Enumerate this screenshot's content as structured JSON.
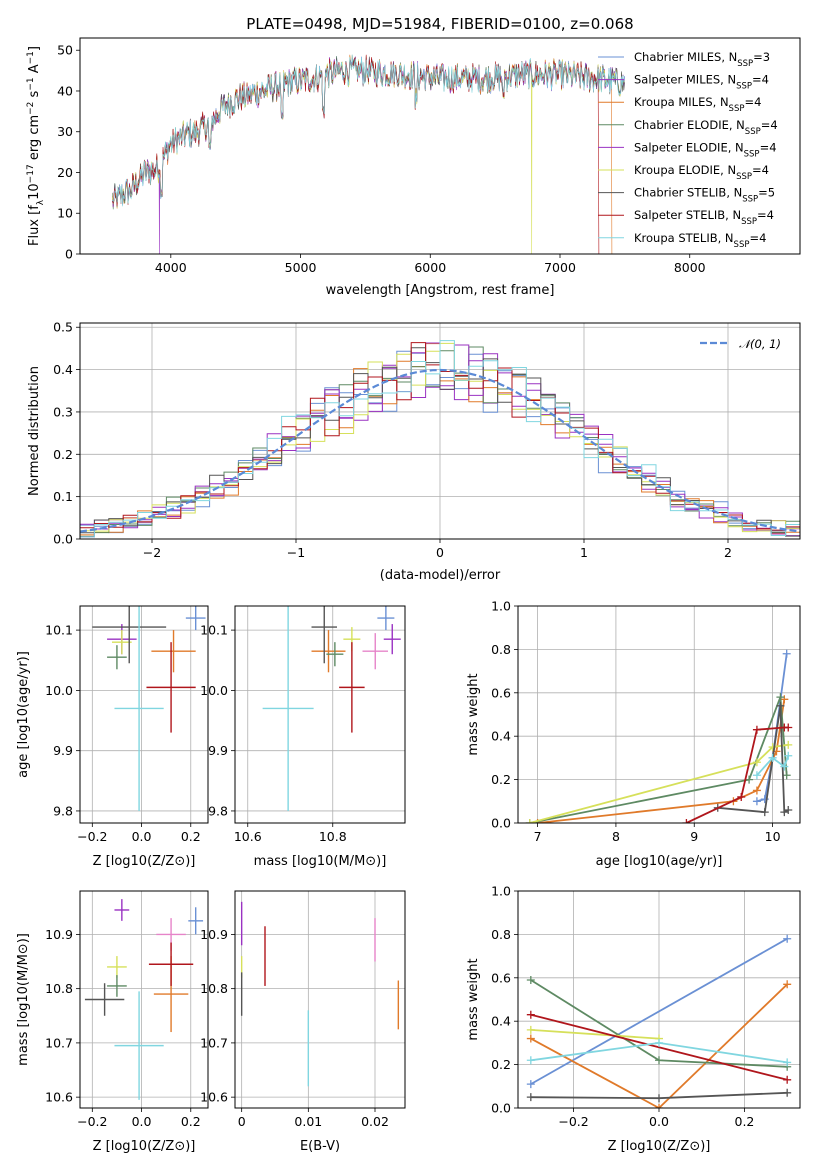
{
  "figure": {
    "title": "PLATE=0498, MJD=51984, FIBERID=0100, z=0.068"
  },
  "colors": {
    "Chabrier MILES": "#6a90d4",
    "Salpeter MILES": "#9a32c2",
    "Kroupa MILES": "#e07a2a",
    "Chabrier ELODIE": "#5e8a63",
    "Salpeter ELODIE": "#9a32c2",
    "Kroupa ELODIE": "#d6e05a",
    "Chabrier STELIB": "#555555",
    "Salpeter STELIB": "#b0161c",
    "Kroupa STELIB": "#80d6e0",
    "gaussian": "#5b8ad6",
    "pink": "#e684c9"
  },
  "chart_data": [
    {
      "id": "spectrum",
      "type": "line",
      "xlabel": "wavelength [Angstrom, rest frame]",
      "ylabel": "Flux [f_λ10^-17 erg cm^-2 s^-1 A^-1]",
      "xlim": [
        3300,
        8850
      ],
      "ylim": [
        0,
        53
      ],
      "xticks": [
        4000,
        5000,
        6000,
        7000,
        8000
      ],
      "yticks": [
        0,
        10,
        20,
        30,
        40,
        50
      ],
      "legend_position": "upper right",
      "legend": [
        "Chabrier MILES, N_SSP=3",
        "Salpeter MILES, N_SSP=4",
        "Kroupa MILES, N_SSP=4",
        "Chabrier ELODIE, N_SSP=4",
        "Salpeter ELODIE, N_SSP=4",
        "Kroupa ELODIE, N_SSP=4",
        "Chabrier STELIB, N_SSP=5",
        "Salpeter STELIB, N_SSP=4",
        "Kroupa STELIB, N_SSP=4"
      ],
      "continuum": {
        "x": [
          3550,
          3700,
          3800,
          3900,
          4000,
          4100,
          4200,
          4300,
          4400,
          4500,
          4700,
          4900,
          5100,
          5300,
          5500,
          5800,
          6100,
          6400,
          6700,
          7000,
          7300,
          7500
        ],
        "y": [
          13,
          16,
          20,
          21,
          27,
          29,
          30,
          32,
          36,
          38,
          40,
          42,
          43,
          45,
          45,
          44,
          43,
          43,
          44,
          44,
          43,
          42
        ]
      },
      "dips": [
        {
          "x": 3930,
          "y": 14
        },
        {
          "x": 4300,
          "y": 24
        },
        {
          "x": 4860,
          "y": 31
        },
        {
          "x": 5175,
          "y": 33
        },
        {
          "x": 5890,
          "y": 36
        },
        {
          "x": 6560,
          "y": 38
        }
      ]
    },
    {
      "id": "residuals",
      "type": "step",
      "xlabel": "(data-model)/error",
      "ylabel": "Normed distribution",
      "xlim": [
        -2.5,
        2.5
      ],
      "ylim": [
        0,
        0.51
      ],
      "xticks": [
        -2,
        -1,
        0,
        1,
        2
      ],
      "yticks": [
        0.0,
        0.1,
        0.2,
        0.3,
        0.4,
        0.5
      ],
      "grid": true,
      "legend": [
        "𝒩(0, 1)"
      ],
      "legend_position": "upper right",
      "bins": 50
    },
    {
      "id": "age_vs_Z",
      "type": "errorbar",
      "xlabel": "Z [log10(Z/Z⊙)]",
      "ylabel": "age [log10(age/yr)]",
      "xlim": [
        -0.25,
        0.27
      ],
      "ylim": [
        9.78,
        10.14
      ],
      "xticks": [
        -0.2,
        0.0,
        0.2
      ],
      "yticks": [
        9.8,
        9.9,
        10.0,
        10.1
      ],
      "grid": true,
      "points": [
        {
          "x": 0.22,
          "y": 10.12,
          "xerr": 0.04,
          "yerr": 0.02,
          "c": "Chabrier MILES"
        },
        {
          "x": 0.13,
          "y": 10.065,
          "xerr": 0.09,
          "yerr": 0.035,
          "c": "Kroupa MILES"
        },
        {
          "x": -0.08,
          "y": 10.085,
          "xerr": 0.06,
          "yerr": 0.025,
          "c": "Salpeter ELODIE"
        },
        {
          "x": -0.08,
          "y": 10.08,
          "xerr": 0.04,
          "yerr": 0.02,
          "c": "Kroupa ELODIE"
        },
        {
          "x": -0.1,
          "y": 10.055,
          "xerr": 0.04,
          "yerr": 0.02,
          "c": "Chabrier ELODIE"
        },
        {
          "x": -0.05,
          "y": 10.105,
          "xerr": 0.15,
          "yerr": 0.06,
          "c": "Chabrier STELIB"
        },
        {
          "x": 0.12,
          "y": 10.005,
          "xerr": 0.1,
          "yerr": 0.075,
          "c": "Salpeter STELIB"
        },
        {
          "x": -0.01,
          "y": 9.97,
          "xerr": 0.1,
          "yerr": 0.17,
          "c": "Kroupa STELIB"
        }
      ]
    },
    {
      "id": "age_vs_mass",
      "type": "errorbar",
      "xlabel": "mass [log10(M/M⊙)]",
      "ylabel": "",
      "xlim": [
        10.57,
        10.97
      ],
      "ylim": [
        9.78,
        10.14
      ],
      "xticks": [
        10.6,
        10.8
      ],
      "yticks": [
        9.8,
        9.9,
        10.0,
        10.1
      ],
      "grid": true,
      "points": [
        {
          "x": 10.925,
          "y": 10.12,
          "xerr": 0.02,
          "yerr": 0.02,
          "c": "Chabrier MILES"
        },
        {
          "x": 10.94,
          "y": 10.085,
          "xerr": 0.02,
          "yerr": 0.025,
          "c": "Salpeter ELODIE"
        },
        {
          "x": 10.79,
          "y": 10.065,
          "xerr": 0.04,
          "yerr": 0.035,
          "c": "Kroupa MILES"
        },
        {
          "x": 10.845,
          "y": 10.085,
          "xerr": 0.02,
          "yerr": 0.02,
          "c": "Kroupa ELODIE"
        },
        {
          "x": 10.805,
          "y": 10.06,
          "xerr": 0.02,
          "yerr": 0.02,
          "c": "Chabrier ELODIE"
        },
        {
          "x": 10.9,
          "y": 10.065,
          "xerr": 0.03,
          "yerr": 0.03,
          "c": "pink"
        },
        {
          "x": 10.78,
          "y": 10.105,
          "xerr": 0.03,
          "yerr": 0.06,
          "c": "Chabrier STELIB"
        },
        {
          "x": 10.845,
          "y": 10.005,
          "xerr": 0.03,
          "yerr": 0.075,
          "c": "Salpeter STELIB"
        },
        {
          "x": 10.695,
          "y": 9.97,
          "xerr": 0.06,
          "yerr": 0.17,
          "c": "Kroupa STELIB"
        }
      ]
    },
    {
      "id": "mass_weight_vs_age",
      "type": "line",
      "xlabel": "age [log10(age/yr)]",
      "ylabel": "mass weight",
      "xlim": [
        6.75,
        10.35
      ],
      "ylim": [
        0,
        1
      ],
      "xticks": [
        7,
        8,
        9,
        10
      ],
      "yticks": [
        0.0,
        0.2,
        0.4,
        0.6,
        0.8,
        1.0
      ],
      "grid": true,
      "series": [
        {
          "c": "Chabrier MILES",
          "x": [
            9.8,
            9.9,
            10.0,
            10.18
          ],
          "y": [
            0.1,
            0.11,
            0.3,
            0.78
          ]
        },
        {
          "c": "Kroupa MILES",
          "x": [
            7.0,
            9.5,
            9.8,
            10.05,
            10.15
          ],
          "y": [
            0.0,
            0.1,
            0.15,
            0.33,
            0.57
          ]
        },
        {
          "c": "Chabrier ELODIE",
          "x": [
            6.9,
            9.7,
            10.1,
            10.18
          ],
          "y": [
            0.0,
            0.2,
            0.58,
            0.22
          ]
        },
        {
          "c": "Kroupa ELODIE",
          "x": [
            6.9,
            9.8,
            10.0,
            10.2
          ],
          "y": [
            0.0,
            0.28,
            0.35,
            0.36
          ]
        },
        {
          "c": "Chabrier STELIB",
          "x": [
            9.3,
            9.9,
            10.1,
            10.15,
            10.2
          ],
          "y": [
            0.07,
            0.05,
            0.54,
            0.05,
            0.06
          ]
        },
        {
          "c": "Salpeter STELIB",
          "x": [
            8.9,
            9.6,
            9.8,
            10.15,
            10.2
          ],
          "y": [
            0.0,
            0.12,
            0.43,
            0.44,
            0.44
          ]
        },
        {
          "c": "Kroupa STELIB",
          "x": [
            9.8,
            10.0,
            10.15,
            10.2
          ],
          "y": [
            0.22,
            0.3,
            0.26,
            0.31
          ]
        }
      ]
    },
    {
      "id": "mass_vs_Z",
      "type": "errorbar",
      "xlabel": "Z [log10(Z/Z⊙)]",
      "ylabel": "mass [log10(M/M⊙)]",
      "xlim": [
        -0.25,
        0.27
      ],
      "ylim": [
        10.58,
        10.98
      ],
      "xticks": [
        -0.2,
        0.0,
        0.2
      ],
      "yticks": [
        10.6,
        10.7,
        10.8,
        10.9
      ],
      "grid": true,
      "points": [
        {
          "x": 0.22,
          "y": 10.925,
          "xerr": 0.03,
          "yerr": 0.025,
          "c": "Chabrier MILES"
        },
        {
          "x": -0.08,
          "y": 10.945,
          "xerr": 0.03,
          "yerr": 0.02,
          "c": "Salpeter ELODIE"
        },
        {
          "x": 0.12,
          "y": 10.9,
          "xerr": 0.06,
          "yerr": 0.03,
          "c": "pink"
        },
        {
          "x": 0.12,
          "y": 10.79,
          "xerr": 0.07,
          "yerr": 0.07,
          "c": "Kroupa MILES"
        },
        {
          "x": -0.1,
          "y": 10.84,
          "xerr": 0.04,
          "yerr": 0.02,
          "c": "Kroupa ELODIE"
        },
        {
          "x": -0.1,
          "y": 10.805,
          "xerr": 0.04,
          "yerr": 0.02,
          "c": "Chabrier ELODIE"
        },
        {
          "x": -0.15,
          "y": 10.78,
          "xerr": 0.08,
          "yerr": 0.03,
          "c": "Chabrier STELIB"
        },
        {
          "x": 0.12,
          "y": 10.845,
          "xerr": 0.09,
          "yerr": 0.04,
          "c": "Salpeter STELIB"
        },
        {
          "x": -0.01,
          "y": 10.695,
          "xerr": 0.1,
          "yerr": 0.1,
          "c": "Kroupa STELIB"
        }
      ]
    },
    {
      "id": "mass_vs_ebv",
      "type": "errorbar",
      "xlabel": "E(B-V)",
      "ylabel": "",
      "xlim": [
        -0.001,
        0.0245
      ],
      "ylim": [
        10.58,
        10.98
      ],
      "xticks": [
        0.0,
        0.01,
        0.02
      ],
      "yticks": [
        10.6,
        10.7,
        10.8,
        10.9
      ],
      "grid": true,
      "points": [
        {
          "x": 0.0,
          "y": 10.92,
          "xerr": 0,
          "yerr": 0.04,
          "c": "Salpeter ELODIE"
        },
        {
          "x": 0.0,
          "y": 10.84,
          "xerr": 0,
          "yerr": 0.02,
          "c": "Kroupa ELODIE"
        },
        {
          "x": 0.0,
          "y": 10.79,
          "xerr": 0,
          "yerr": 0.04,
          "c": "Chabrier STELIB"
        },
        {
          "x": 0.0035,
          "y": 10.86,
          "xerr": 0,
          "yerr": 0.055,
          "c": "Salpeter STELIB"
        },
        {
          "x": 0.01,
          "y": 10.69,
          "xerr": 0,
          "yerr": 0.07,
          "c": "Kroupa STELIB"
        },
        {
          "x": 0.02,
          "y": 10.89,
          "xerr": 0,
          "yerr": 0.04,
          "c": "pink"
        },
        {
          "x": 0.0235,
          "y": 10.77,
          "xerr": 0,
          "yerr": 0.045,
          "c": "Kroupa MILES"
        }
      ]
    },
    {
      "id": "mass_weight_vs_Z",
      "type": "line",
      "xlabel": "Z [log10(Z/Z⊙)]",
      "ylabel": "mass weight",
      "xlim": [
        -0.33,
        0.33
      ],
      "ylim": [
        0,
        1
      ],
      "xticks": [
        -0.2,
        0.0,
        0.2
      ],
      "yticks": [
        0.0,
        0.2,
        0.4,
        0.6,
        0.8,
        1.0
      ],
      "grid": true,
      "series": [
        {
          "c": "Chabrier MILES",
          "x": [
            -0.3,
            0.3
          ],
          "y": [
            0.11,
            0.78
          ]
        },
        {
          "c": "Kroupa MILES",
          "x": [
            -0.3,
            0.0,
            0.3
          ],
          "y": [
            0.32,
            0.0,
            0.57
          ]
        },
        {
          "c": "Chabrier ELODIE",
          "x": [
            -0.3,
            0.0,
            0.3
          ],
          "y": [
            0.59,
            0.22,
            0.19
          ]
        },
        {
          "c": "Kroupa ELODIE",
          "x": [
            -0.3,
            0.0
          ],
          "y": [
            0.36,
            0.32
          ]
        },
        {
          "c": "Chabrier STELIB",
          "x": [
            -0.3,
            0.0,
            0.3
          ],
          "y": [
            0.05,
            0.045,
            0.07
          ]
        },
        {
          "c": "Salpeter STELIB",
          "x": [
            -0.3,
            0.3
          ],
          "y": [
            0.43,
            0.13
          ]
        },
        {
          "c": "Kroupa STELIB",
          "x": [
            -0.3,
            0.0,
            0.3
          ],
          "y": [
            0.22,
            0.3,
            0.21
          ]
        }
      ]
    }
  ]
}
